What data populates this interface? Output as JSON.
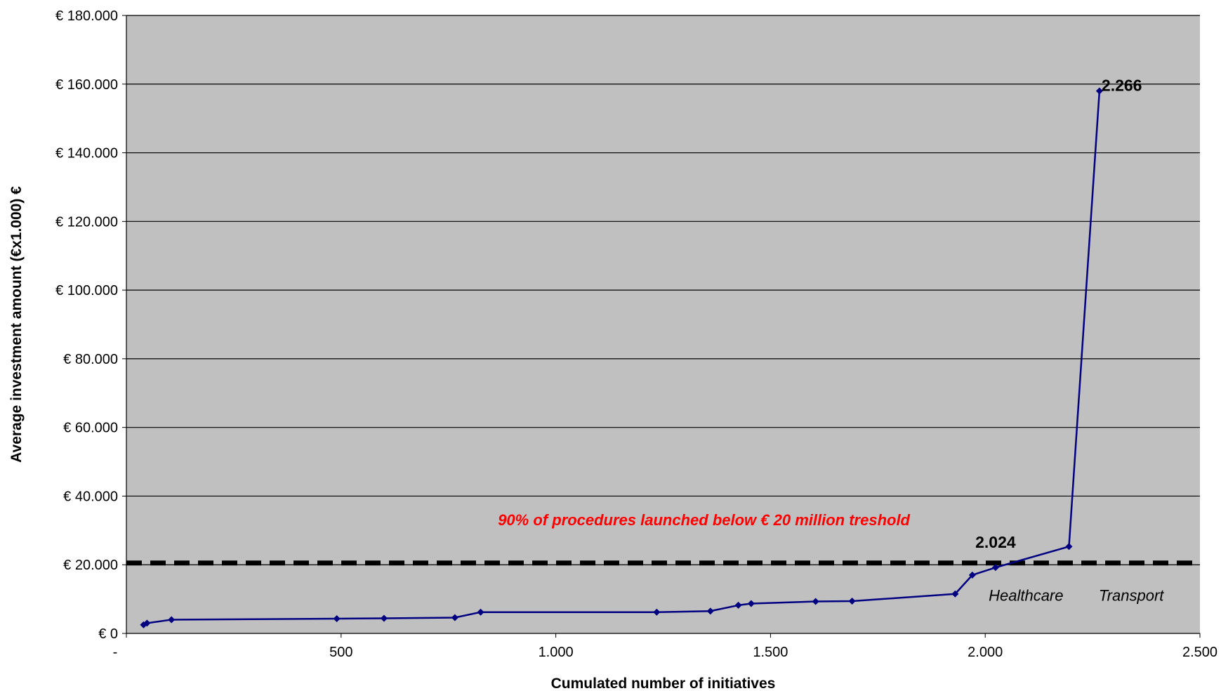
{
  "chart_data": {
    "type": "line",
    "xlabel": "Cumulated number of initiatives",
    "ylabel": "Average investment amount (€x1.000) €",
    "xlim": [
      0,
      2500
    ],
    "ylim": [
      0,
      180000
    ],
    "x_ticks": [
      {
        "value": 0,
        "label": "-"
      },
      {
        "value": 500,
        "label": "500"
      },
      {
        "value": 1000,
        "label": "1.000"
      },
      {
        "value": 1500,
        "label": "1.500"
      },
      {
        "value": 2000,
        "label": "2.000"
      },
      {
        "value": 2500,
        "label": "2.500"
      }
    ],
    "y_ticks": [
      {
        "value": 0,
        "label": "€ 0"
      },
      {
        "value": 20000,
        "label": "€ 20.000"
      },
      {
        "value": 40000,
        "label": "€ 40.000"
      },
      {
        "value": 60000,
        "label": "€ 60.000"
      },
      {
        "value": 80000,
        "label": "€ 80.000"
      },
      {
        "value": 100000,
        "label": "€ 100.000"
      },
      {
        "value": 120000,
        "label": "€ 120.000"
      },
      {
        "value": 140000,
        "label": "€ 140.000"
      },
      {
        "value": 160000,
        "label": "€ 160.000"
      },
      {
        "value": 180000,
        "label": "€ 180.000"
      }
    ],
    "grid": true,
    "series": [
      {
        "x": [
          40,
          48,
          105,
          490,
          600,
          765,
          825,
          1235,
          1360,
          1425,
          1455,
          1605,
          1690,
          1930,
          1970,
          2024,
          2195,
          2266
        ],
        "y": [
          2500,
          3000,
          4000,
          4300,
          4400,
          4600,
          6200,
          6200,
          6500,
          8200,
          8700,
          9300,
          9400,
          11500,
          17000,
          19200,
          25300,
          158000
        ],
        "color": "#000080"
      }
    ],
    "threshold": {
      "value": 20500,
      "style": "dashed",
      "color": "#000000"
    },
    "annotations": [
      {
        "text": "90% of procedures launched below € 20 million treshold",
        "x": 1345,
        "y": 31500,
        "color": "#ff0000"
      },
      {
        "text": "2.024",
        "x": 2024,
        "y": 25000
      },
      {
        "text": "2.266",
        "x": 2320,
        "y": 158000
      },
      {
        "text": "Healthcare",
        "x": 2095,
        "y": 9500
      },
      {
        "text": "Transport",
        "x": 2340,
        "y": 9500
      }
    ],
    "colors": {
      "plot_background": "#c0c0c0",
      "line": "#000080",
      "gridline": "#000000"
    }
  }
}
